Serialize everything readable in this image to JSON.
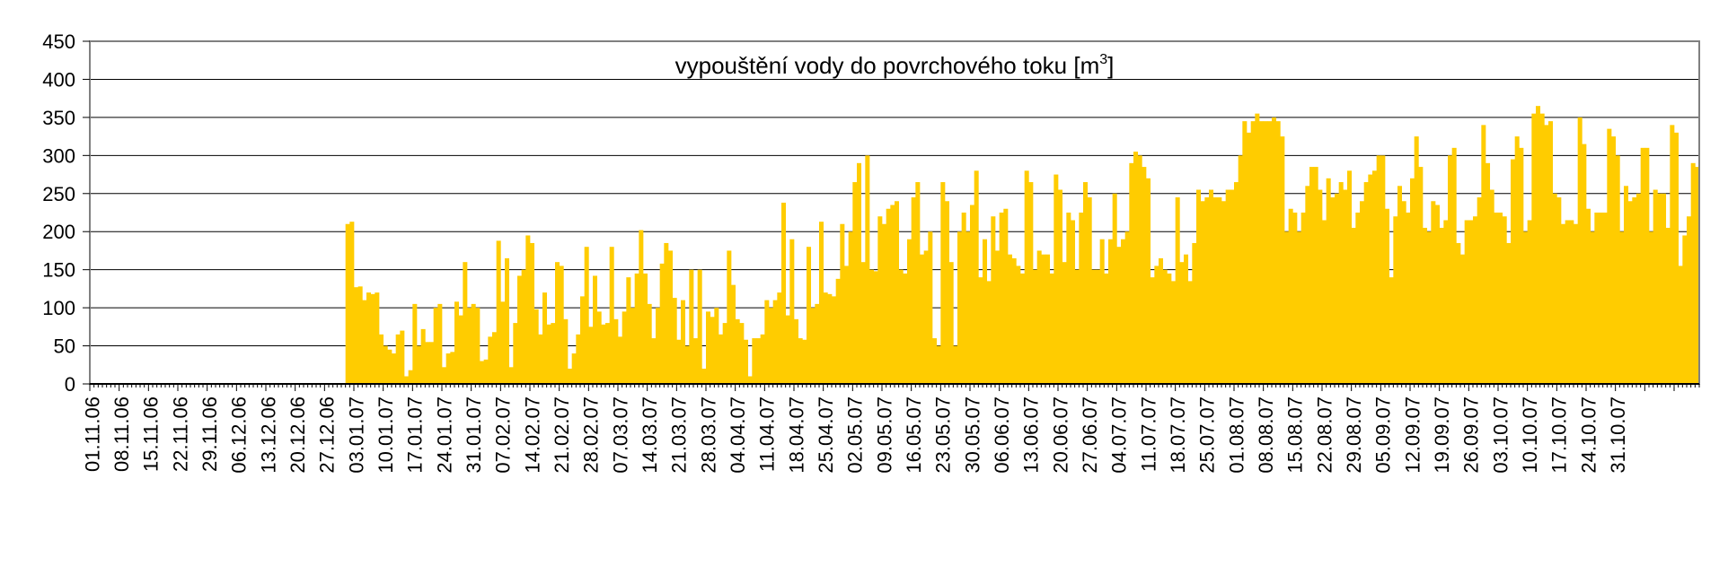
{
  "chart_data": {
    "type": "bar",
    "title": "vypouštění vody do povrchového toku [m",
    "title_sup": "3",
    "title_end": "]",
    "xlabel": "",
    "ylabel": "",
    "ylim": [
      0,
      450
    ],
    "yticks": [
      0,
      50,
      100,
      150,
      200,
      250,
      300,
      350,
      400,
      450
    ],
    "grid": "horizontal",
    "bar_color": "#FFCC00",
    "x_tick_labels": [
      "01.11.06",
      "08.11.06",
      "15.11.06",
      "22.11.06",
      "29.11.06",
      "06.12.06",
      "13.12.06",
      "20.12.06",
      "27.12.06",
      "03.01.07",
      "10.01.07",
      "17.01.07",
      "24.01.07",
      "31.01.07",
      "07.02.07",
      "14.02.07",
      "21.02.07",
      "28.02.07",
      "07.03.07",
      "14.03.07",
      "21.03.07",
      "28.03.07",
      "04.04.07",
      "11.04.07",
      "18.04.07",
      "25.04.07",
      "02.05.07",
      "09.05.07",
      "16.05.07",
      "23.05.07",
      "30.05.07",
      "06.06.07",
      "13.06.07",
      "20.06.07",
      "27.06.07",
      "04.07.07",
      "11.07.07",
      "18.07.07",
      "25.07.07",
      "01.08.07",
      "08.08.07",
      "15.08.07",
      "22.08.07",
      "29.08.07",
      "05.09.07",
      "12.09.07",
      "19.09.07",
      "26.09.07",
      "03.10.07",
      "10.10.07",
      "17.10.07",
      "24.10.07",
      "31.10.07"
    ],
    "period_start_label": "01.11.06",
    "values": [
      0,
      0,
      0,
      0,
      0,
      0,
      0,
      0,
      0,
      0,
      0,
      0,
      0,
      0,
      0,
      0,
      0,
      0,
      0,
      0,
      0,
      0,
      0,
      0,
      0,
      0,
      0,
      0,
      0,
      0,
      0,
      0,
      0,
      0,
      0,
      0,
      0,
      0,
      0,
      0,
      0,
      0,
      0,
      0,
      0,
      0,
      0,
      0,
      0,
      0,
      0,
      0,
      0,
      0,
      0,
      0,
      0,
      0,
      0,
      0,
      0,
      210,
      213,
      127,
      128,
      110,
      120,
      118,
      120,
      65,
      50,
      45,
      40,
      65,
      70,
      10,
      18,
      105,
      50,
      72,
      55,
      55,
      100,
      105,
      22,
      40,
      42,
      108,
      90,
      160,
      100,
      105,
      100,
      30,
      32,
      62,
      68,
      188,
      108,
      165,
      22,
      80,
      142,
      150,
      195,
      185,
      98,
      65,
      120,
      78,
      80,
      160,
      155,
      85,
      20,
      40,
      65,
      115,
      180,
      75,
      142,
      95,
      78,
      80,
      180,
      85,
      62,
      95,
      140,
      100,
      145,
      202,
      145,
      105,
      60,
      100,
      158,
      185,
      175,
      113,
      58,
      110,
      50,
      150,
      60,
      150,
      20,
      95,
      88,
      100,
      65,
      80,
      175,
      130,
      85,
      80,
      58,
      10,
      60,
      60,
      65,
      110,
      100,
      110,
      120,
      238,
      90,
      190,
      85,
      60,
      58,
      180,
      100,
      105,
      213,
      120,
      118,
      115,
      138,
      210,
      155,
      200,
      265,
      290,
      160,
      300,
      150,
      148,
      220,
      210,
      230,
      235,
      240,
      150,
      145,
      190,
      245,
      265,
      170,
      175,
      200,
      60,
      50,
      265,
      240,
      160,
      50,
      200,
      225,
      200,
      235,
      280,
      140,
      190,
      135,
      220,
      175,
      225,
      230,
      170,
      165,
      155,
      145,
      280,
      265,
      150,
      175,
      170,
      170,
      145,
      275,
      255,
      160,
      225,
      215,
      150,
      225,
      265,
      245,
      150,
      150,
      190,
      145,
      190,
      250,
      180,
      190,
      200,
      290,
      305,
      300,
      285,
      270,
      140,
      155,
      165,
      150,
      145,
      135,
      245,
      160,
      170,
      135,
      185,
      255,
      240,
      245,
      255,
      245,
      245,
      240,
      255,
      255,
      265,
      300,
      345,
      330,
      345,
      355,
      345,
      345,
      345,
      350,
      345,
      325,
      200,
      230,
      225,
      200,
      225,
      260,
      285,
      285,
      255,
      215,
      270,
      245,
      250,
      265,
      255,
      280,
      205,
      225,
      240,
      265,
      275,
      280,
      300,
      300,
      230,
      140,
      220,
      260,
      240,
      225,
      270,
      325,
      285,
      205,
      200,
      240,
      235,
      205,
      215,
      300,
      310,
      185,
      170,
      215,
      215,
      220,
      245,
      340,
      290,
      255,
      225,
      225,
      220,
      185,
      295,
      325,
      310,
      200,
      215,
      355,
      365,
      355,
      340,
      345,
      250,
      245,
      210,
      215,
      215,
      210,
      350,
      315,
      230,
      200,
      225,
      225,
      225,
      335,
      325,
      300,
      200,
      260,
      240,
      245,
      250,
      310,
      310,
      200,
      255,
      250,
      250,
      205,
      340,
      330,
      155,
      195,
      220,
      290,
      285
    ]
  }
}
